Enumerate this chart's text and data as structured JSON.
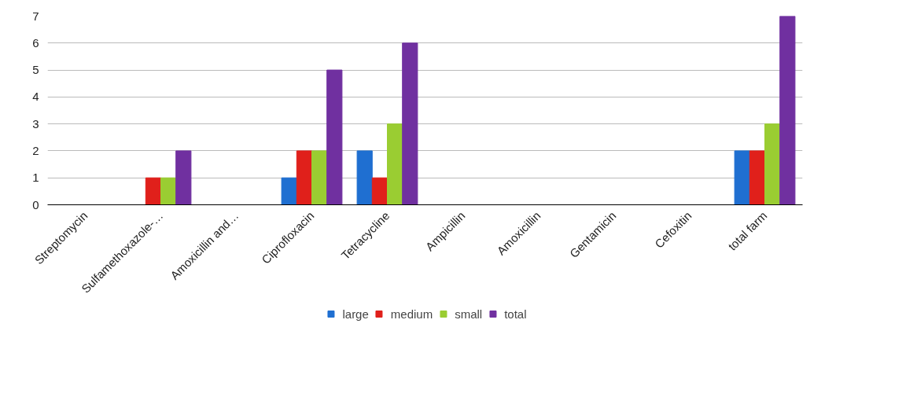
{
  "chart_data": {
    "type": "bar",
    "categories": [
      "Streptomycin",
      "Sulfamethoxazole-…",
      "Amoxicillin and…",
      "Ciprofloxacin",
      "Tetracycline",
      "Ampicillin",
      "Amoxicillin",
      "Gentamicin",
      "Cefoxitin",
      "total farm"
    ],
    "series": [
      {
        "name": "large",
        "color": "#1f6fd1",
        "values": [
          0,
          0,
          0,
          1,
          2,
          0,
          0,
          0,
          0,
          2
        ]
      },
      {
        "name": "medium",
        "color": "#e0201b",
        "values": [
          0,
          1,
          0,
          2,
          1,
          0,
          0,
          0,
          0,
          2
        ]
      },
      {
        "name": "small",
        "color": "#9acd32",
        "values": [
          0,
          1,
          0,
          2,
          3,
          0,
          0,
          0,
          0,
          3
        ]
      },
      {
        "name": "total",
        "color": "#7030a0",
        "values": [
          0,
          2,
          0,
          5,
          6,
          0,
          0,
          0,
          0,
          7
        ]
      }
    ],
    "ylim": [
      0,
      7
    ],
    "yticks": [
      0,
      1,
      2,
      3,
      4,
      5,
      6,
      7
    ],
    "grid": "y",
    "legend": "bottom"
  }
}
